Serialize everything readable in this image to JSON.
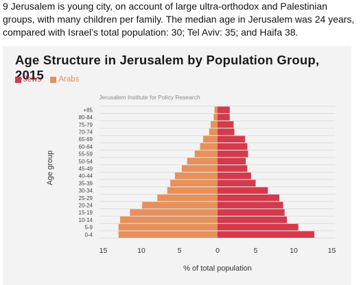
{
  "intro_text": "9 Jerusalem is young city, on account of large ultra-orthodox and Palestinian groups, with many children per family. The median age in Jerusalem was 24 years, compared with Israel’s total population: 30; Tel Aviv: 35; and Haifa 38.",
  "colors": {
    "jews": "#d43a4b",
    "arabs": "#e8905a",
    "grid": "#d9d9d9"
  },
  "chart_data": {
    "type": "bar",
    "orientation": "horizontal-population-pyramid",
    "title": "Age Structure in Jerusalem by Population Group, 2015",
    "source": "Jerusalem Institute for Policy Research",
    "ylabel": "Age group",
    "xlabel": "% of total population",
    "xlim": [
      -15,
      15
    ],
    "x_ticks": [
      -15,
      -10,
      -5,
      0,
      5,
      10,
      15
    ],
    "x_tick_labels": [
      "15",
      "10",
      "5",
      "0",
      "5",
      "10",
      "15"
    ],
    "legend_position": "top-left",
    "categories": [
      "+85",
      "80-84",
      "75-79",
      "70-74",
      "65-69",
      "60-64",
      "55-59",
      "50-54",
      "45-49",
      "40-44",
      "35-39",
      "30-34",
      "25-29",
      "20-24",
      "15-19",
      "10-14",
      "5-9",
      "0-4"
    ],
    "series": [
      {
        "name": "Jews",
        "side": "right",
        "values": [
          1.6,
          1.6,
          2.1,
          2.2,
          3.6,
          3.9,
          4.0,
          3.7,
          3.9,
          4.4,
          5.0,
          6.6,
          8.1,
          8.6,
          8.8,
          9.1,
          10.6,
          12.7
        ]
      },
      {
        "name": "Arabs",
        "side": "left",
        "values": [
          0.4,
          0.5,
          0.9,
          1.1,
          1.9,
          2.3,
          3.0,
          4.0,
          4.7,
          5.6,
          6.2,
          6.6,
          7.9,
          9.9,
          11.5,
          12.8,
          13.0,
          13.0
        ]
      }
    ]
  }
}
